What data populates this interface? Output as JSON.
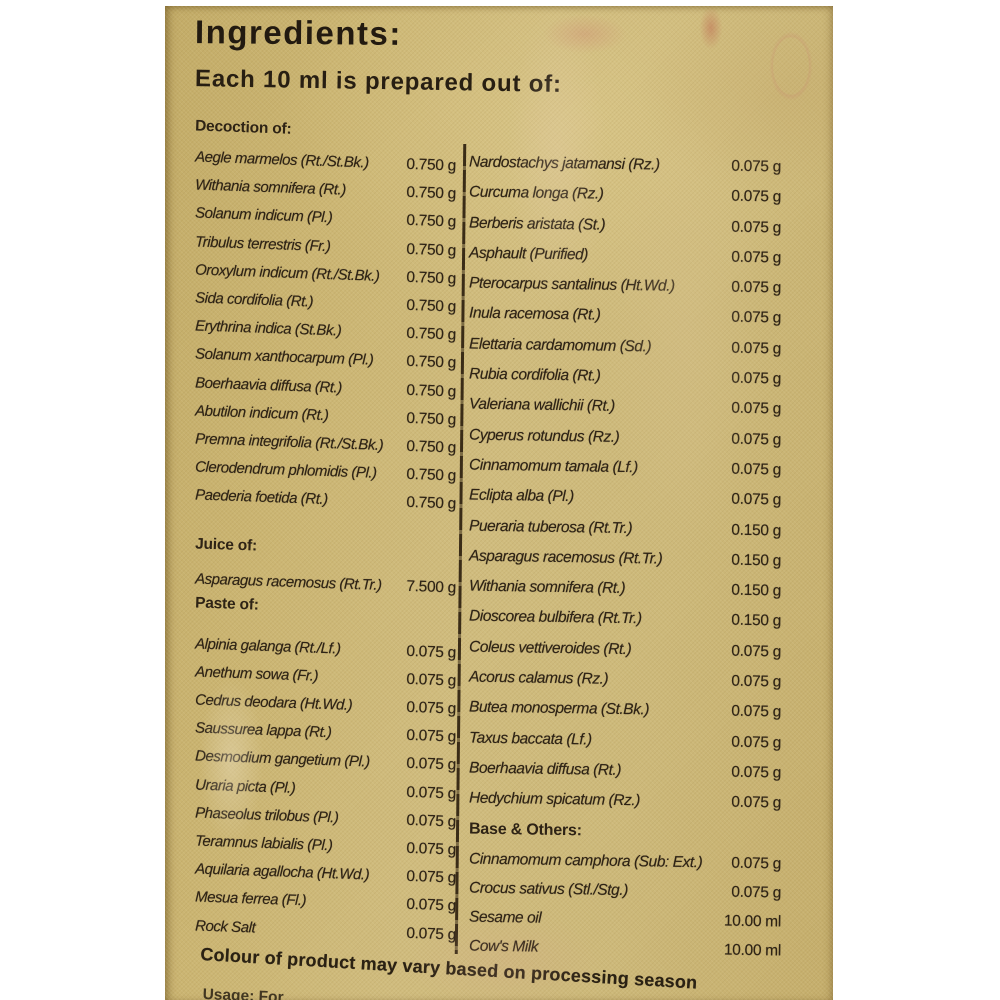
{
  "colors": {
    "page_bg": "#ffffff",
    "label_bg": "#cbb572",
    "text": "#2e2315",
    "divider": "#3a2c17"
  },
  "label": {
    "title": "Ingredients:",
    "subtitle": "Each 10 ml is prepared out of:",
    "left": {
      "decoction_header": "Decoction of:",
      "decoction_items": [
        {
          "name": "Aegle marmelos (Rt./St.Bk.)",
          "amount": "0.750 g"
        },
        {
          "name": "Withania somnifera (Rt.)",
          "amount": "0.750 g"
        },
        {
          "name": "Solanum indicum (Pl.)",
          "amount": "0.750 g"
        },
        {
          "name": "Tribulus terrestris (Fr.)",
          "amount": "0.750 g"
        },
        {
          "name": "Oroxylum indicum (Rt./St.Bk.)",
          "amount": "0.750 g"
        },
        {
          "name": "Sida cordifolia (Rt.)",
          "amount": "0.750 g"
        },
        {
          "name": "Erythrina indica (St.Bk.)",
          "amount": "0.750 g"
        },
        {
          "name": "Solanum xanthocarpum (Pl.)",
          "amount": "0.750 g"
        },
        {
          "name": "Boerhaavia diffusa (Rt.)",
          "amount": "0.750 g"
        },
        {
          "name": "Abutilon indicum (Rt.)",
          "amount": "0.750 g"
        },
        {
          "name": "Premna integrifolia (Rt./St.Bk.)",
          "amount": "0.750 g"
        },
        {
          "name": "Clerodendrum phlomidis (Pl.)",
          "amount": "0.750 g"
        },
        {
          "name": "Paederia foetida (Rt.)",
          "amount": "0.750 g"
        }
      ],
      "juice_header": "Juice of:",
      "juice_items": [
        {
          "name": "Asparagus racemosus (Rt.Tr.)",
          "amount": "7.500 g"
        }
      ],
      "paste_header": "Paste of:",
      "paste_items": [
        {
          "name": "Alpinia galanga (Rt./Lf.)",
          "amount": "0.075 g"
        },
        {
          "name": "Anethum sowa (Fr.)",
          "amount": "0.075 g"
        },
        {
          "name": "Cedrus deodara (Ht.Wd.)",
          "amount": "0.075 g"
        },
        {
          "name": "Saussurea lappa (Rt.)",
          "amount": "0.075 g"
        },
        {
          "name": "Desmodium gangetium (Pl.)",
          "amount": "0.075 g"
        },
        {
          "name": "Uraria picta (Pl.)",
          "amount": "0.075 g"
        },
        {
          "name": "Phaseolus trilobus (Pl.)",
          "amount": "0.075 g"
        },
        {
          "name": "Teramnus labialis (Pl.)",
          "amount": "0.075 g"
        },
        {
          "name": "Aquilaria agallocha (Ht.Wd.)",
          "amount": "0.075 g"
        },
        {
          "name": "Mesua ferrea (Fl.)",
          "amount": "0.075 g"
        },
        {
          "name": "Rock Salt",
          "amount": "0.075 g"
        }
      ]
    },
    "right": {
      "items": [
        {
          "name": "Nardostachys jatamansi (Rz.)",
          "amount": "0.075 g"
        },
        {
          "name": "Curcuma longa (Rz.)",
          "amount": "0.075 g"
        },
        {
          "name": "Berberis aristata (St.)",
          "amount": "0.075 g"
        },
        {
          "name": "Asphault (Purified)",
          "amount": "0.075 g"
        },
        {
          "name": "Pterocarpus santalinus (Ht.Wd.)",
          "amount": "0.075 g"
        },
        {
          "name": "Inula racemosa (Rt.)",
          "amount": "0.075 g"
        },
        {
          "name": "Elettaria cardamomum (Sd.)",
          "amount": "0.075 g"
        },
        {
          "name": "Rubia cordifolia (Rt.)",
          "amount": "0.075 g"
        },
        {
          "name": "Valeriana wallichii (Rt.)",
          "amount": "0.075 g"
        },
        {
          "name": "Cyperus rotundus (Rz.)",
          "amount": "0.075 g"
        },
        {
          "name": "Cinnamomum tamala (Lf.)",
          "amount": "0.075 g"
        },
        {
          "name": "Eclipta alba (Pl.)",
          "amount": "0.075 g"
        },
        {
          "name": "Pueraria tuberosa (Rt.Tr.)",
          "amount": "0.150 g"
        },
        {
          "name": "Asparagus racemosus (Rt.Tr.)",
          "amount": "0.150 g"
        },
        {
          "name": "Withania somnifera (Rt.)",
          "amount": "0.150 g"
        },
        {
          "name": "Dioscorea bulbifera (Rt.Tr.)",
          "amount": "0.150 g"
        },
        {
          "name": "Coleus vettiveroides (Rt.)",
          "amount": "0.075 g"
        },
        {
          "name": "Acorus calamus (Rz.)",
          "amount": "0.075 g"
        },
        {
          "name": "Butea monosperma (St.Bk.)",
          "amount": "0.075 g"
        },
        {
          "name": "Taxus baccata (Lf.)",
          "amount": "0.075 g"
        },
        {
          "name": "Boerhaavia diffusa (Rt.)",
          "amount": "0.075 g"
        },
        {
          "name": "Hedychium spicatum (Rz.)",
          "amount": "0.075 g"
        }
      ],
      "base_header": "Base & Others:",
      "base_items": [
        {
          "name": "Cinnamomum camphora (Sub: Ext.)",
          "amount": "0.075 g"
        },
        {
          "name": "Crocus sativus (Stl./Stg.)",
          "amount": "0.075 g"
        },
        {
          "name": "Sesame oil",
          "amount": "10.00 ml"
        },
        {
          "name": "Cow's Milk",
          "amount": "10.00 ml"
        }
      ]
    },
    "footnote": "Colour of product may vary based on processing season",
    "usage_note": "Usage: For"
  }
}
